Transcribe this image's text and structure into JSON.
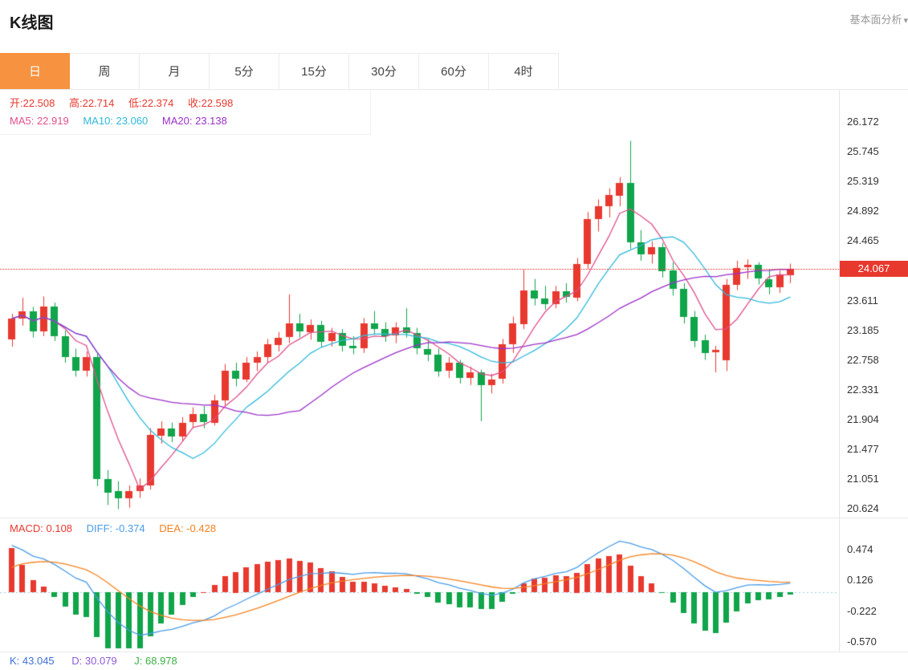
{
  "header": {
    "title": "K线图",
    "analysis_link": "基本面分析",
    "caret": "▾"
  },
  "tabs": {
    "items": [
      {
        "label": "日",
        "active": true
      },
      {
        "label": "周",
        "active": false
      },
      {
        "label": "月",
        "active": false
      },
      {
        "label": "5分",
        "active": false
      },
      {
        "label": "15分",
        "active": false
      },
      {
        "label": "30分",
        "active": false
      },
      {
        "label": "60分",
        "active": false
      },
      {
        "label": "4时",
        "active": false
      }
    ]
  },
  "main_chart": {
    "legend_ohlc": [
      "开:22.508",
      "高:22.714",
      "低:22.374",
      "收:22.598"
    ],
    "legend_ma": [
      "MA5: 22.919",
      "MA10: 23.060",
      "MA20: 23.138"
    ],
    "y_axis_labels": [
      "26.172",
      "25.745",
      "25.319",
      "24.892",
      "24.465",
      "23.611",
      "23.185",
      "22.758",
      "22.331",
      "21.904",
      "21.477",
      "21.051",
      "20.624"
    ],
    "price_badge": "24.067"
  },
  "macd_panel": {
    "readout": [
      "MACD: 0.108",
      "DIFF: -0.374",
      "DEA: -0.428"
    ],
    "y_axis_labels": [
      "0.474",
      "0.126",
      "-0.222",
      "-0.570"
    ]
  },
  "kdj": {
    "readout": [
      "K: 43.045",
      "D: 30.079",
      "J: 68.978"
    ]
  },
  "colors": {
    "up": "#E8392F",
    "down": "#10A54A",
    "ma5": "#E0508C",
    "ma10": "#2FB9DC",
    "ma20": "#9B30C8",
    "diff": "#4A9CE8",
    "dea": "#F5821F",
    "badge": "#E8392F",
    "zero_line": "#9FCBE8",
    "tab_active": "#F79240",
    "k": "#3E6FD9",
    "d": "#8E5BD6",
    "j": "#3CB044",
    "red_text": "#E8392F"
  },
  "chart_data": [
    {
      "type": "candlestick",
      "title": "K线图 (日)",
      "ohlc_format": [
        "open",
        "high",
        "low",
        "close"
      ],
      "y_range": [
        20.5,
        26.63
      ],
      "y_axis_labels": [
        26.172,
        25.745,
        25.319,
        24.892,
        24.465,
        23.611,
        23.185,
        22.758,
        22.331,
        21.904,
        21.477,
        21.051,
        20.624
      ],
      "current_price": 24.067,
      "moving_averages": {
        "MA5": 22.919,
        "MA10": 23.06,
        "MA20": 23.138
      },
      "legend_position": "top-left",
      "grid": false,
      "candles": [
        [
          23.05,
          23.42,
          22.95,
          23.35
        ],
        [
          23.35,
          23.65,
          23.25,
          23.45
        ],
        [
          23.45,
          23.52,
          23.08,
          23.16
        ],
        [
          23.16,
          23.67,
          23.1,
          23.52
        ],
        [
          23.52,
          23.58,
          23.03,
          23.1
        ],
        [
          23.1,
          23.18,
          22.72,
          22.8
        ],
        [
          22.8,
          22.92,
          22.52,
          22.6
        ],
        [
          22.6,
          22.88,
          22.52,
          22.8
        ],
        [
          22.8,
          22.86,
          20.95,
          21.05
        ],
        [
          21.05,
          21.18,
          20.68,
          20.85
        ],
        [
          20.88,
          21.02,
          20.62,
          20.78
        ],
        [
          20.78,
          20.96,
          20.64,
          20.88
        ],
        [
          20.88,
          21.06,
          20.78,
          20.96
        ],
        [
          20.96,
          21.78,
          20.9,
          21.68
        ],
        [
          21.68,
          21.88,
          21.56,
          21.78
        ],
        [
          21.78,
          21.86,
          21.58,
          21.66
        ],
        [
          21.66,
          21.94,
          21.6,
          21.86
        ],
        [
          21.86,
          22.08,
          21.78,
          21.98
        ],
        [
          21.98,
          22.1,
          21.78,
          21.86
        ],
        [
          21.86,
          22.26,
          21.82,
          22.18
        ],
        [
          22.18,
          22.7,
          22.1,
          22.6
        ],
        [
          22.6,
          22.72,
          22.38,
          22.48
        ],
        [
          22.48,
          22.8,
          22.44,
          22.72
        ],
        [
          22.72,
          22.88,
          22.6,
          22.8
        ],
        [
          22.8,
          23.06,
          22.72,
          22.98
        ],
        [
          22.98,
          23.16,
          22.88,
          23.08
        ],
        [
          23.08,
          23.7,
          23.0,
          23.28
        ],
        [
          23.28,
          23.42,
          23.08,
          23.16
        ],
        [
          23.16,
          23.34,
          23.05,
          23.26
        ],
        [
          23.26,
          23.32,
          22.94,
          23.02
        ],
        [
          23.02,
          23.22,
          22.95,
          23.14
        ],
        [
          23.14,
          23.2,
          22.88,
          22.96
        ],
        [
          22.96,
          23.1,
          22.84,
          22.92
        ],
        [
          22.92,
          23.36,
          22.86,
          23.28
        ],
        [
          23.28,
          23.46,
          23.12,
          23.2
        ],
        [
          23.2,
          23.3,
          23.02,
          23.1
        ],
        [
          23.1,
          23.3,
          23.0,
          23.22
        ],
        [
          23.22,
          23.5,
          23.08,
          23.14
        ],
        [
          23.14,
          23.22,
          22.84,
          22.92
        ],
        [
          22.92,
          23.06,
          22.74,
          22.84
        ],
        [
          22.84,
          22.92,
          22.52,
          22.6
        ],
        [
          22.6,
          22.8,
          22.5,
          22.72
        ],
        [
          22.72,
          22.76,
          22.42,
          22.5
        ],
        [
          22.5,
          22.66,
          22.4,
          22.58
        ],
        [
          22.58,
          22.62,
          21.88,
          22.4
        ],
        [
          22.4,
          22.56,
          22.28,
          22.48
        ],
        [
          22.48,
          23.06,
          22.42,
          22.98
        ],
        [
          22.98,
          23.38,
          22.86,
          23.28
        ],
        [
          23.28,
          24.06,
          23.2,
          23.76
        ],
        [
          23.76,
          23.92,
          23.54,
          23.64
        ],
        [
          23.64,
          23.82,
          23.48,
          23.56
        ],
        [
          23.56,
          23.82,
          23.5,
          23.74
        ],
        [
          23.74,
          23.86,
          23.58,
          23.66
        ],
        [
          23.66,
          24.22,
          23.6,
          24.14
        ],
        [
          24.14,
          24.88,
          24.06,
          24.78
        ],
        [
          24.78,
          25.06,
          24.6,
          24.96
        ],
        [
          24.96,
          25.22,
          24.8,
          25.12
        ],
        [
          25.12,
          25.38,
          24.96,
          25.3
        ],
        [
          25.3,
          25.9,
          24.35,
          24.45
        ],
        [
          24.45,
          24.62,
          24.18,
          24.28
        ],
        [
          24.28,
          24.46,
          24.14,
          24.38
        ],
        [
          24.38,
          24.44,
          23.94,
          24.04
        ],
        [
          24.04,
          24.16,
          23.68,
          23.78
        ],
        [
          23.78,
          23.86,
          23.28,
          23.38
        ],
        [
          23.38,
          23.46,
          22.94,
          23.04
        ],
        [
          23.04,
          23.12,
          22.76,
          22.86
        ],
        [
          22.86,
          22.96,
          22.58,
          22.9
        ],
        [
          22.76,
          23.92,
          22.6,
          23.84
        ],
        [
          23.84,
          24.18,
          23.76,
          24.08
        ],
        [
          24.08,
          24.2,
          23.92,
          24.12
        ],
        [
          24.12,
          24.16,
          23.84,
          23.92
        ],
        [
          23.92,
          24.06,
          23.7,
          23.8
        ],
        [
          23.8,
          24.04,
          23.72,
          23.98
        ],
        [
          23.98,
          24.14,
          23.86,
          24.07
        ]
      ]
    },
    {
      "type": "bar",
      "subtype": "macd-histogram-with-diff-dea-lines",
      "y_range": [
        -0.678,
        0.825
      ],
      "y_axis_labels": [
        0.474,
        0.126,
        -0.222,
        -0.57
      ],
      "readout": {
        "MACD": 0.108,
        "DIFF": -0.374,
        "DEA": -0.428
      },
      "derived": "histogram, DIFF and DEA series computed from the candle closes above via EMA(12,26,9)",
      "zero_line": "dotted"
    }
  ]
}
